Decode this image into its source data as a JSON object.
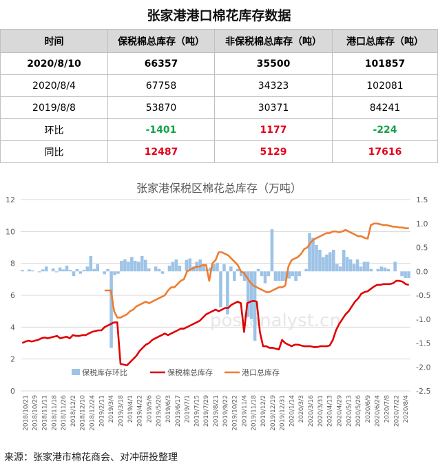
{
  "title": "张家港港口棉花库存数据",
  "table": {
    "headers": [
      "时间",
      "保税棉总库存（吨）",
      "非保税棉总库存（吨）",
      "港口总库存（吨）"
    ],
    "rows": [
      {
        "label": "2020/8/10",
        "c1": "66357",
        "c2": "35500",
        "c3": "101857"
      },
      {
        "label": "2020/8/4",
        "c1": "67758",
        "c2": "34323",
        "c3": "102081"
      },
      {
        "label": "2019/8/8",
        "c1": "53870",
        "c2": "30371",
        "c3": "84241"
      },
      {
        "label": "环比",
        "c1": "-1401",
        "c2": "1177",
        "c3": "-224"
      },
      {
        "label": "同比",
        "c1": "12487",
        "c2": "5129",
        "c3": "17616"
      }
    ]
  },
  "colors": {
    "green": "#11a24a",
    "red": "#e3001b",
    "bar": "#9dc3e6",
    "bonded": "#e00000",
    "port": "#ed7d31"
  },
  "chart_data": {
    "type": "line",
    "title": "张家港保税区棉花总库存（万吨）",
    "ylim_left": [
      0,
      12
    ],
    "yticks_left": [
      0,
      2,
      4,
      6,
      8,
      10,
      12
    ],
    "ylim_right": [
      -2.5,
      1.5
    ],
    "yticks_right": [
      "-2.5",
      "-2.0",
      "-1.5",
      "-1.0",
      "-0.5",
      "0.0",
      "0.5",
      "1.0",
      "1.5"
    ],
    "x_tick_labels": [
      "2018/10/21",
      "2018/10/29",
      "2018/11/11",
      "2018/11/18",
      "2018/11/26",
      "2018/12/2",
      "2018/12/10",
      "2018/12/24",
      "2019/2/11",
      "2019/3/4",
      "2019/3/18",
      "2019/4/1",
      "2019/4/22",
      "2019/5/6",
      "2019/5/20",
      "2019/6/3",
      "2019/6/17",
      "2019/7/1",
      "2019/7/15",
      "2019/7/29",
      "2019/8/21",
      "2019/9/22",
      "2019/10/22",
      "2019/11/4",
      "2019/11/18",
      "2019/12/2",
      "2019/12/19",
      "2019/12/31",
      "2020/1/14",
      "2020/3/3",
      "2020/3/16",
      "2020/3/31",
      "2020/4/13",
      "2020/4/29",
      "2020/5/13",
      "2020/5/26",
      "2020/6/9",
      "2020/6/24",
      "2020/7/8",
      "2020/7/22",
      "2020/8/4"
    ],
    "legend": [
      "保税库存环比",
      "保税棉总库存",
      "港口总库存"
    ],
    "grid": true,
    "series": [
      {
        "name": "保税库存环比",
        "axis": "right",
        "type": "bar",
        "values": [
          0.03,
          0.0,
          0.04,
          0.02,
          0.0,
          -0.02,
          0.04,
          0.1,
          0.0,
          0.06,
          -0.02,
          0.08,
          0.04,
          0.12,
          0.03,
          -0.1,
          0.05,
          -0.05,
          0.03,
          0.1,
          0.32,
          0.05,
          0.15,
          0.0,
          -0.06,
          0.05,
          -1.6,
          -0.08,
          -0.05,
          0.22,
          0.25,
          0.2,
          0.3,
          0.22,
          0.2,
          0.32,
          0.24,
          0.06,
          0.0,
          0.1,
          0.05,
          -0.05,
          0.0,
          0.12,
          0.2,
          0.25,
          0.12,
          0.0,
          0.24,
          0.27,
          0.1,
          0.2,
          0.25,
          0.15,
          0.05,
          0.08,
          0.15,
          0.18,
          -0.75,
          0.15,
          -0.9,
          0.1,
          -0.2,
          0.05,
          -0.1,
          -0.2,
          -0.95,
          -1.0,
          -1.45,
          0.05,
          -0.1,
          -0.25,
          -0.1,
          0.88,
          -0.2,
          -0.2,
          -0.2,
          -0.2,
          -0.15,
          -0.1,
          -0.2,
          -0.1,
          0.0,
          0.05,
          0.8,
          0.7,
          0.55,
          0.45,
          0.3,
          0.35,
          0.4,
          0.45,
          0.15,
          0.1,
          0.45,
          0.3,
          0.25,
          0.15,
          0.25,
          0.1,
          0.2,
          0.2,
          0.05,
          0.0,
          0.05,
          0.1,
          0.08,
          0.05,
          0.0,
          0.2,
          0.0,
          -0.1,
          -0.14,
          -0.14
        ]
      },
      {
        "name": "保税棉总库存",
        "axis": "left",
        "type": "line",
        "values": [
          3.0,
          3.1,
          3.15,
          3.1,
          3.15,
          3.2,
          3.3,
          3.35,
          3.3,
          3.35,
          3.4,
          3.45,
          3.3,
          3.35,
          3.4,
          3.3,
          3.5,
          3.45,
          3.45,
          3.5,
          3.5,
          3.6,
          3.7,
          3.75,
          3.8,
          3.8,
          4.0,
          4.1,
          4.2,
          4.3,
          4.3,
          1.7,
          1.65,
          1.6,
          1.8,
          2.0,
          2.2,
          2.5,
          2.7,
          2.9,
          3.0,
          3.2,
          3.3,
          3.4,
          3.5,
          3.6,
          3.5,
          3.6,
          3.7,
          3.8,
          3.9,
          3.9,
          4.0,
          4.1,
          4.2,
          4.3,
          4.4,
          4.6,
          4.8,
          4.9,
          5.0,
          5.1,
          5.0,
          5.1,
          5.2,
          5.2,
          5.4,
          5.5,
          5.6,
          5.5,
          3.7,
          5.5,
          5.6,
          5.65,
          5.6,
          3.7,
          2.8,
          2.8,
          2.7,
          2.7,
          2.65,
          2.6,
          3.2,
          3.0,
          2.9,
          2.8,
          2.9,
          2.9,
          2.85,
          2.8,
          2.8,
          2.8,
          2.75,
          2.75,
          2.8,
          2.8,
          2.8,
          2.85,
          3.2,
          3.8,
          4.2,
          4.5,
          4.8,
          5.0,
          5.3,
          5.6,
          5.8,
          6.1,
          6.2,
          6.25,
          6.4,
          6.55,
          6.65,
          6.65,
          6.7,
          6.7,
          6.7,
          6.75,
          6.9,
          6.9,
          6.85,
          6.7,
          6.65
        ]
      },
      {
        "name": "港口总库存",
        "axis": "left",
        "type": "line",
        "values": [
          null,
          null,
          null,
          null,
          null,
          null,
          null,
          null,
          null,
          null,
          null,
          null,
          null,
          null,
          null,
          null,
          null,
          null,
          null,
          null,
          null,
          null,
          null,
          null,
          null,
          null,
          6.3,
          6.3,
          6.3,
          5.0,
          4.6,
          4.6,
          4.7,
          4.8,
          5.0,
          5.1,
          5.3,
          5.4,
          5.5,
          5.6,
          5.5,
          5.6,
          5.7,
          5.8,
          5.9,
          6.0,
          6.3,
          6.5,
          6.5,
          6.7,
          6.9,
          7.0,
          7.5,
          7.6,
          7.7,
          7.8,
          7.8,
          7.9,
          7.9,
          6.9,
          8.0,
          8.2,
          8.7,
          8.7,
          8.6,
          8.5,
          8.3,
          8.1,
          7.9,
          7.5,
          7.4,
          7.1,
          6.8,
          6.6,
          6.5,
          6.4,
          6.3,
          6.2,
          6.2,
          6.3,
          6.4,
          6.5,
          6.5,
          6.6,
          7.8,
          8.2,
          8.3,
          8.4,
          8.6,
          8.9,
          9.0,
          9.3,
          9.5,
          9.6,
          9.7,
          9.8,
          9.9,
          9.9,
          10.0,
          10.0,
          9.95,
          10.0,
          10.1,
          10.0,
          9.9,
          9.8,
          9.7,
          9.7,
          9.6,
          9.55,
          10.4,
          10.5,
          10.5,
          10.45,
          10.4,
          10.4,
          10.35,
          10.3,
          10.3,
          10.25,
          10.25,
          10.2,
          10.2
        ]
      }
    ]
  },
  "watermark": "postanalyst.cn",
  "source": "来源：张家港市棉花商会、对冲研投整理"
}
